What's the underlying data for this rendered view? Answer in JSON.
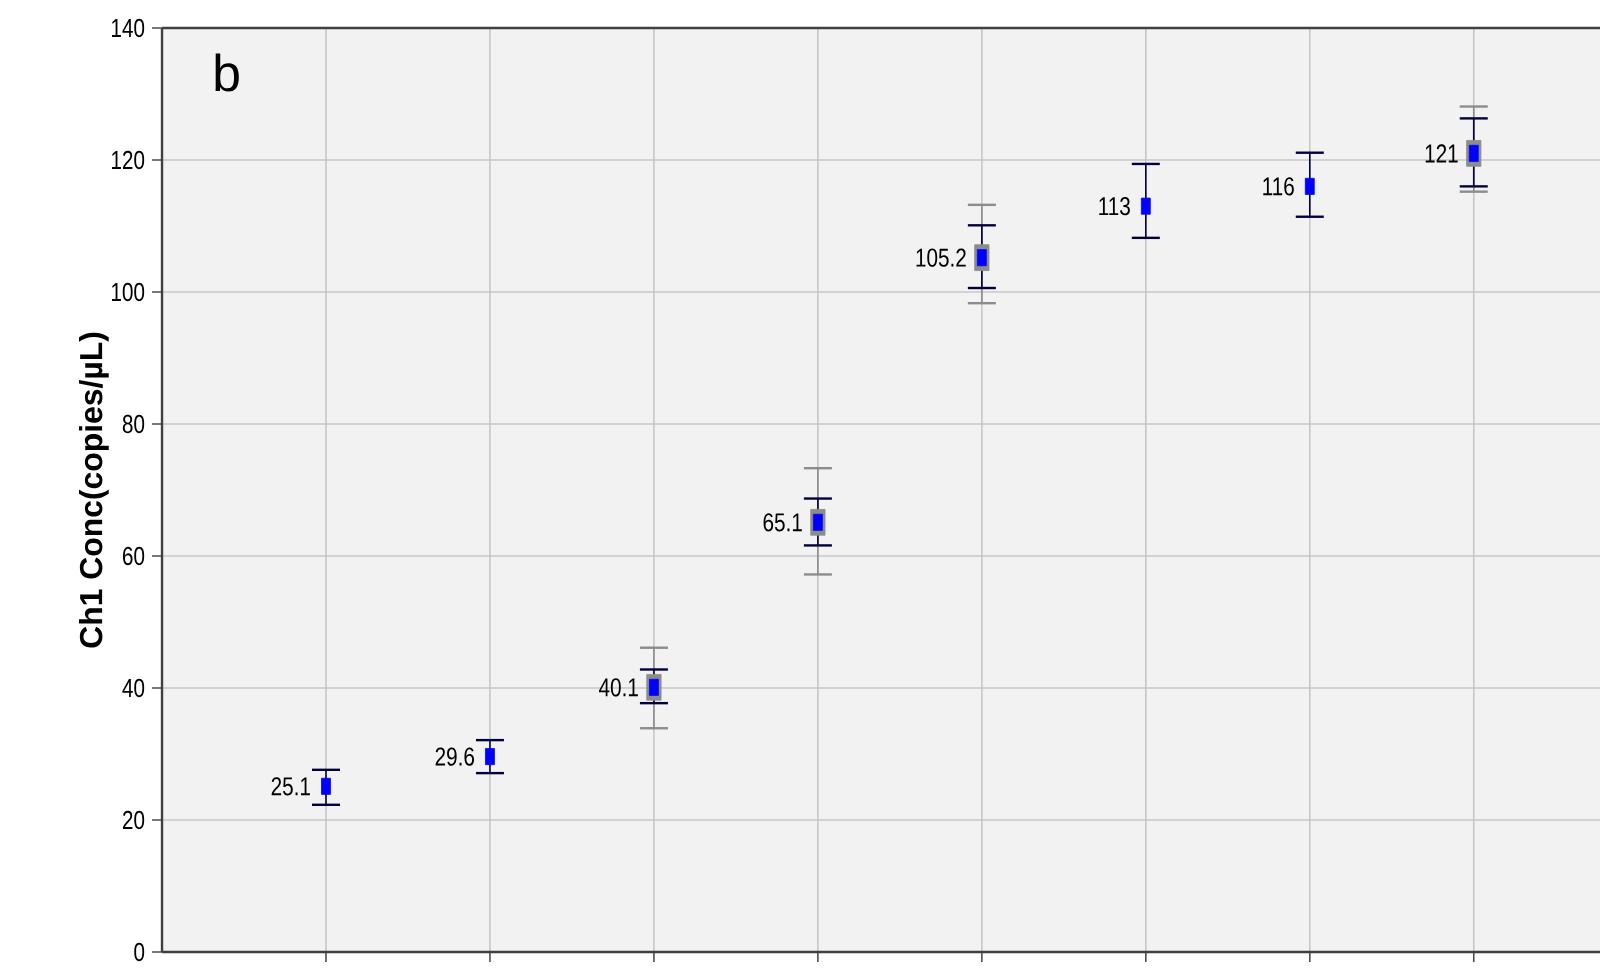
{
  "chart_data": {
    "type": "scatter",
    "ylabel": "Ch1 Conc(copies/µL)",
    "annotations": [
      "b"
    ],
    "categories": [
      null,
      null,
      null,
      null,
      null,
      null,
      null,
      null
    ],
    "series": [
      {
        "color": "#8c8c8c",
        "marker": "square",
        "values": [
          null,
          null,
          40.1,
          65.1,
          105.2,
          null,
          null,
          121
        ],
        "errors": [
          null,
          null,
          [
            33.9,
            46.1
          ],
          [
            57.2,
            73.3
          ],
          [
            98.3,
            113.2
          ],
          null,
          null,
          [
            115.2,
            128.1
          ]
        ]
      },
      {
        "color": "#0000ff",
        "marker": "square",
        "data_labels": true,
        "values": [
          25.1,
          29.6,
          40.1,
          65.1,
          105.2,
          113,
          116,
          121
        ],
        "errors": [
          [
            22.3,
            27.6
          ],
          [
            27.1,
            32.1
          ],
          [
            37.7,
            42.8
          ],
          [
            61.6,
            68.7
          ],
          [
            100.6,
            110.1
          ],
          [
            108.2,
            119.4
          ],
          [
            111.4,
            121.1
          ],
          [
            116.0,
            126.3
          ]
        ]
      }
    ],
    "ylim": [
      0,
      140
    ],
    "yticks": [
      0,
      20,
      40,
      60,
      80,
      100,
      120,
      140
    ],
    "grid": true
  }
}
